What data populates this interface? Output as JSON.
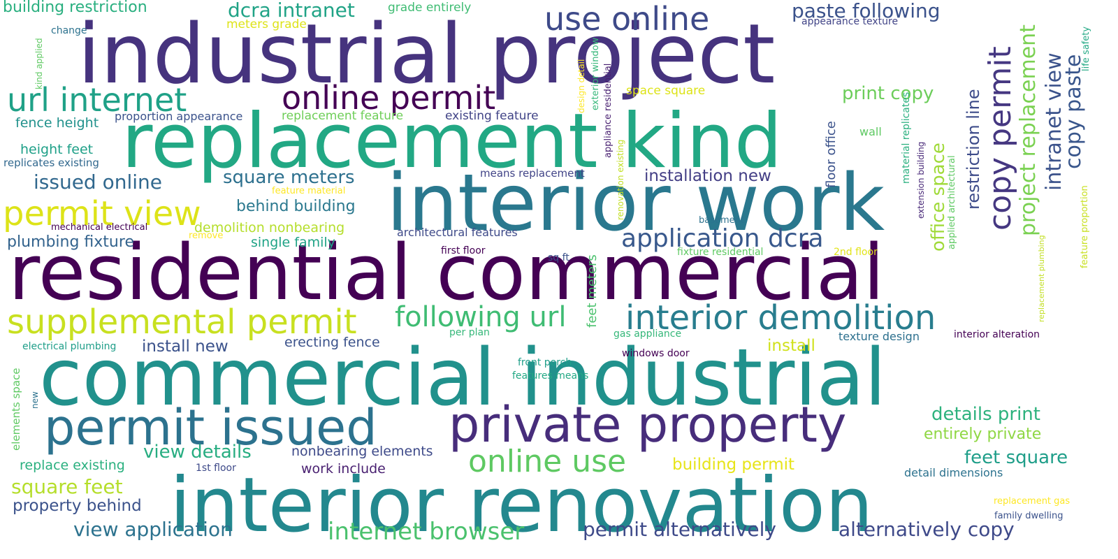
{
  "words": [
    {
      "text": "industrial project",
      "color": "#46337e"
    },
    {
      "text": "replacement kind",
      "color": "#22a884"
    },
    {
      "text": "interior work",
      "color": "#2a788e"
    },
    {
      "text": "residential commercial",
      "color": "#440154"
    },
    {
      "text": "commercial industrial",
      "color": "#21918c"
    },
    {
      "text": "interior renovation",
      "color": "#23888e"
    },
    {
      "text": "private property",
      "color": "#472d7b"
    },
    {
      "text": "permit issued",
      "color": "#2c728e"
    },
    {
      "text": "supplemental permit",
      "color": "#c8e020"
    },
    {
      "text": "interior demolition",
      "color": "#287d8e"
    },
    {
      "text": "following url",
      "color": "#3fbc73"
    },
    {
      "text": "url internet",
      "color": "#1fa187"
    },
    {
      "text": "online permit",
      "color": "#440154"
    },
    {
      "text": "use online",
      "color": "#3e4a89"
    },
    {
      "text": "permit view",
      "color": "#dde318"
    },
    {
      "text": "online use",
      "color": "#5ec962"
    },
    {
      "text": "copy permit",
      "color": "#453781"
    },
    {
      "text": "project replacement",
      "color": "#7ad151"
    },
    {
      "text": "intranet view",
      "color": "#3b528b"
    },
    {
      "text": "copy paste",
      "color": "#39568c"
    },
    {
      "text": "application dcra",
      "color": "#38588c"
    },
    {
      "text": "issued online",
      "color": "#31688e"
    },
    {
      "text": "square meters",
      "color": "#2d708e"
    },
    {
      "text": "behind building",
      "color": "#2a788e"
    },
    {
      "text": "dcra intranet",
      "color": "#20a386"
    },
    {
      "text": "paste following",
      "color": "#3b528b"
    },
    {
      "text": "building restriction",
      "color": "#29af7f"
    },
    {
      "text": "print copy",
      "color": "#6ccd5a"
    },
    {
      "text": "installation new",
      "color": "#433e85"
    },
    {
      "text": "restriction line",
      "color": "#3e4c8a"
    },
    {
      "text": "office space",
      "color": "#a0da39"
    },
    {
      "text": "plumbing fixture",
      "color": "#33638d"
    },
    {
      "text": "details print",
      "color": "#2db27d"
    },
    {
      "text": "entirely private",
      "color": "#8fd744"
    },
    {
      "text": "feet square",
      "color": "#1f9e89"
    },
    {
      "text": "view details",
      "color": "#27ad81"
    },
    {
      "text": "square feet",
      "color": "#b5de2b"
    },
    {
      "text": "property behind",
      "color": "#3b528b"
    },
    {
      "text": "view application",
      "color": "#2c728e"
    },
    {
      "text": "internet browser",
      "color": "#4ac16d"
    },
    {
      "text": "permit alternatively",
      "color": "#3e4a89"
    },
    {
      "text": "alternatively copy",
      "color": "#3e4989"
    },
    {
      "text": "install new",
      "color": "#3b528b"
    },
    {
      "text": "install",
      "color": "#d0e11c"
    },
    {
      "text": "building permit",
      "color": "#e7e419"
    },
    {
      "text": "work include",
      "color": "#481f70"
    },
    {
      "text": "replace existing",
      "color": "#2ab07f"
    },
    {
      "text": "single family",
      "color": "#20a386"
    },
    {
      "text": "demolition nonbearing",
      "color": "#b5de2b"
    },
    {
      "text": "erecting fence",
      "color": "#3b528b"
    },
    {
      "text": "nonbearing elements",
      "color": "#3e4a89"
    },
    {
      "text": "fence height",
      "color": "#21918c"
    },
    {
      "text": "height feet",
      "color": "#1fa088"
    },
    {
      "text": "replicates existing",
      "color": "#31688e"
    },
    {
      "text": "proportion appearance",
      "color": "#3b528b"
    },
    {
      "text": "replacement feature",
      "color": "#6ece58"
    },
    {
      "text": "existing feature",
      "color": "#414487"
    },
    {
      "text": "means replacement",
      "color": "#414487"
    },
    {
      "text": "space square",
      "color": "#dde318"
    },
    {
      "text": "meters grade",
      "color": "#dde318"
    },
    {
      "text": "grade entirely",
      "color": "#3fbc73"
    },
    {
      "text": "appearance texture",
      "color": "#414487"
    },
    {
      "text": "change",
      "color": "#2c728e"
    },
    {
      "text": "kind applied",
      "color": "#5ec962"
    },
    {
      "text": "design detail",
      "color": "#fde725"
    },
    {
      "text": "exterior window",
      "color": "#35b779"
    },
    {
      "text": "appliance residential",
      "color": "#481f70"
    },
    {
      "text": "renovation existing",
      "color": "#c2df23"
    },
    {
      "text": "floor office",
      "color": "#3b528b"
    },
    {
      "text": "material replicates",
      "color": "#2ab07f"
    },
    {
      "text": "extension building",
      "color": "#482878"
    },
    {
      "text": "applied architectural",
      "color": "#5ec962"
    },
    {
      "text": "life safety",
      "color": "#22a884"
    },
    {
      "text": "feature proportion",
      "color": "#c8e020"
    },
    {
      "text": "replacement plumbing",
      "color": "#c2df23"
    },
    {
      "text": "feature material",
      "color": "#fde725"
    },
    {
      "text": "mechanical electrical",
      "color": "#440154"
    },
    {
      "text": "remove",
      "color": "#fde725"
    },
    {
      "text": "architectural features",
      "color": "#3e4a89"
    },
    {
      "text": "first floor",
      "color": "#440154"
    },
    {
      "text": "sq ft",
      "color": "#3b528b"
    },
    {
      "text": "fixture residential",
      "color": "#5ec962"
    },
    {
      "text": "2nd floor",
      "color": "#e2e418"
    },
    {
      "text": "basement",
      "color": "#2c728e"
    },
    {
      "text": "wall",
      "color": "#5ec962"
    },
    {
      "text": "feet meters",
      "color": "#4ac16d"
    },
    {
      "text": "electrical plumbing",
      "color": "#1f9e89"
    },
    {
      "text": "per plan",
      "color": "#35b779"
    },
    {
      "text": "gas appliance",
      "color": "#35b779"
    },
    {
      "text": "texture design",
      "color": "#2d708e"
    },
    {
      "text": "interior alteration",
      "color": "#440154"
    },
    {
      "text": "windows door",
      "color": "#440154"
    },
    {
      "text": "front porch",
      "color": "#1f9e89"
    },
    {
      "text": "features means",
      "color": "#22a884"
    },
    {
      "text": "elements space",
      "color": "#5ec962"
    },
    {
      "text": "new",
      "color": "#2c728e"
    },
    {
      "text": "1st floor",
      "color": "#3e4a89"
    },
    {
      "text": "detail dimensions",
      "color": "#2c728e"
    },
    {
      "text": "replacement gas",
      "color": "#fde725"
    },
    {
      "text": "family dwelling",
      "color": "#3b528b"
    }
  ]
}
